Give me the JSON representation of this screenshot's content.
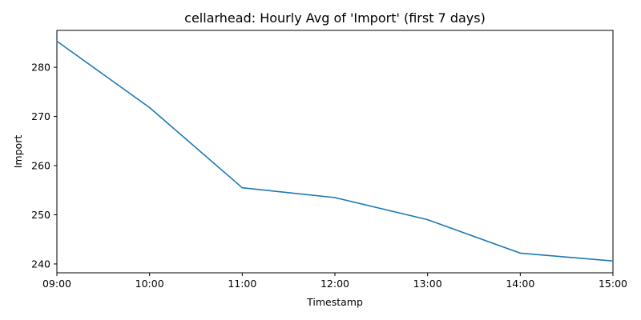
{
  "chart_data": {
    "type": "line",
    "title": "cellarhead: Hourly Avg of 'Import' (first 7 days)",
    "xlabel": "Timestamp",
    "ylabel": "Import",
    "x": [
      "09:00",
      "10:00",
      "11:00",
      "12:00",
      "13:00",
      "14:00",
      "15:00"
    ],
    "series": [
      {
        "values": [
          285.3,
          271.8,
          255.5,
          253.5,
          249.0,
          242.2,
          240.6
        ],
        "color": "#1f77b4"
      }
    ],
    "ylim": [
      238.2,
      287.5
    ],
    "yticks": [
      240,
      250,
      260,
      270,
      280
    ],
    "grid": false
  }
}
